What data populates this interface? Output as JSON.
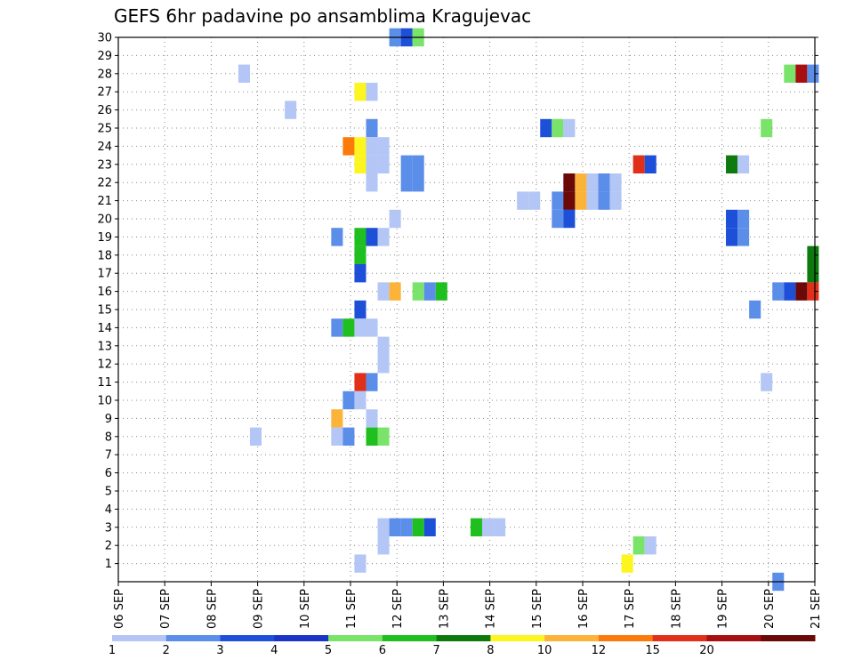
{
  "chart_data": {
    "type": "heatmap",
    "title": "GEFS 6hr padavine po ansamblima Kragujevac",
    "x_tick_labels": [
      "06 SEP",
      "07 SEP",
      "08 SEP",
      "09 SEP",
      "10 SEP",
      "11 SEP",
      "12 SEP",
      "13 SEP",
      "14 SEP",
      "15 SEP",
      "16 SEP",
      "17 SEP",
      "18 SEP",
      "19 SEP",
      "20 SEP",
      "21 SEP"
    ],
    "x_range_days": [
      0,
      15
    ],
    "step_days": 0.25,
    "y_tick_labels": [
      1,
      2,
      3,
      4,
      5,
      6,
      7,
      8,
      9,
      10,
      11,
      12,
      13,
      14,
      15,
      16,
      17,
      18,
      19,
      20,
      21,
      22,
      23,
      24,
      25,
      26,
      27,
      28,
      29,
      30
    ],
    "y_range": [
      0,
      30
    ],
    "grid": true,
    "colorbar": {
      "labels": [
        "1",
        "2",
        "3",
        "4",
        "5",
        "6",
        "7",
        "8",
        "10",
        "12",
        "15",
        "20"
      ],
      "colors": [
        "#b3c6f5",
        "#5b8ee9",
        "#1d4fd8",
        "#1a35c6",
        "#7ae36a",
        "#1fbf1f",
        "#0e7a0e",
        "#fdf520",
        "#fbb33a",
        "#fb7a0a",
        "#e0301a",
        "#a80f10",
        "#6b0808"
      ]
    },
    "cells": [
      [
        30,
        5.96,
        "#5b8ee9"
      ],
      [
        30,
        6.21,
        "#1d4fd8"
      ],
      [
        30,
        6.46,
        "#7ae36a"
      ],
      [
        28,
        2.71,
        "#b3c6f5"
      ],
      [
        28,
        14.46,
        "#7ae36a"
      ],
      [
        28,
        14.71,
        "#a80f10"
      ],
      [
        28,
        14.96,
        "#5b8ee9"
      ],
      [
        27,
        5.21,
        "#fdf520"
      ],
      [
        27,
        5.46,
        "#b3c6f5"
      ],
      [
        26,
        3.71,
        "#b3c6f5"
      ],
      [
        25,
        5.46,
        "#5b8ee9"
      ],
      [
        25,
        9.21,
        "#1d4fd8"
      ],
      [
        25,
        9.46,
        "#7ae36a"
      ],
      [
        25,
        9.71,
        "#b3c6f5"
      ],
      [
        25,
        13.96,
        "#7ae36a"
      ],
      [
        24,
        4.96,
        "#fb7a0a"
      ],
      [
        24,
        5.21,
        "#fdf520"
      ],
      [
        24,
        5.46,
        "#b3c6f5"
      ],
      [
        24,
        5.71,
        "#b3c6f5"
      ],
      [
        23,
        5.21,
        "#fdf520"
      ],
      [
        23,
        5.46,
        "#b3c6f5"
      ],
      [
        23,
        5.71,
        "#b3c6f5"
      ],
      [
        23,
        6.21,
        "#5b8ee9"
      ],
      [
        23,
        6.46,
        "#5b8ee9"
      ],
      [
        23,
        11.21,
        "#e0301a"
      ],
      [
        23,
        11.46,
        "#1d4fd8"
      ],
      [
        23,
        13.21,
        "#0e7a0e"
      ],
      [
        23,
        13.46,
        "#b3c6f5"
      ],
      [
        22,
        5.46,
        "#b3c6f5"
      ],
      [
        22,
        6.21,
        "#5b8ee9"
      ],
      [
        22,
        6.46,
        "#5b8ee9"
      ],
      [
        22,
        9.71,
        "#6b0808"
      ],
      [
        22,
        9.96,
        "#fbb33a"
      ],
      [
        22,
        10.21,
        "#b3c6f5"
      ],
      [
        22,
        10.46,
        "#5b8ee9"
      ],
      [
        22,
        10.71,
        "#b3c6f5"
      ],
      [
        21,
        8.71,
        "#b3c6f5"
      ],
      [
        21,
        8.96,
        "#b3c6f5"
      ],
      [
        21,
        9.46,
        "#5b8ee9"
      ],
      [
        21,
        9.71,
        "#1d4fd8"
      ],
      [
        21,
        9.71,
        "#6b0808"
      ],
      [
        21,
        9.96,
        "#fbb33a"
      ],
      [
        21,
        10.21,
        "#b3c6f5"
      ],
      [
        21,
        10.46,
        "#5b8ee9"
      ],
      [
        21,
        10.71,
        "#b3c6f5"
      ],
      [
        20,
        5.96,
        "#b3c6f5"
      ],
      [
        20,
        9.46,
        "#5b8ee9"
      ],
      [
        20,
        9.71,
        "#1d4fd8"
      ],
      [
        20,
        13.21,
        "#1d4fd8"
      ],
      [
        20,
        13.46,
        "#5b8ee9"
      ],
      [
        19,
        4.71,
        "#5b8ee9"
      ],
      [
        19,
        5.21,
        "#1fbf1f"
      ],
      [
        19,
        5.46,
        "#1d4fd8"
      ],
      [
        19,
        5.71,
        "#b3c6f5"
      ],
      [
        19,
        13.21,
        "#1d4fd8"
      ],
      [
        19,
        13.46,
        "#5b8ee9"
      ],
      [
        18,
        5.21,
        "#1fbf1f"
      ],
      [
        18,
        14.96,
        "#0e7a0e"
      ],
      [
        17,
        5.21,
        "#1d4fd8"
      ],
      [
        17,
        14.96,
        "#0e7a0e"
      ],
      [
        16,
        5.71,
        "#b3c6f5"
      ],
      [
        16,
        5.96,
        "#fbb33a"
      ],
      [
        16,
        6.46,
        "#7ae36a"
      ],
      [
        16,
        6.71,
        "#5b8ee9"
      ],
      [
        16,
        6.96,
        "#1fbf1f"
      ],
      [
        16,
        14.21,
        "#5b8ee9"
      ],
      [
        16,
        14.46,
        "#1d4fd8"
      ],
      [
        16,
        14.71,
        "#6b0808"
      ],
      [
        16,
        14.96,
        "#e0301a"
      ],
      [
        15,
        5.21,
        "#1d4fd8"
      ],
      [
        15,
        13.71,
        "#5b8ee9"
      ],
      [
        14,
        4.71,
        "#5b8ee9"
      ],
      [
        14,
        4.96,
        "#1fbf1f"
      ],
      [
        14,
        5.21,
        "#b3c6f5"
      ],
      [
        14,
        5.46,
        "#b3c6f5"
      ],
      [
        13,
        5.71,
        "#b3c6f5"
      ],
      [
        12,
        5.71,
        "#b3c6f5"
      ],
      [
        11,
        5.21,
        "#e0301a"
      ],
      [
        11,
        5.46,
        "#5b8ee9"
      ],
      [
        11,
        13.96,
        "#b3c6f5"
      ],
      [
        10,
        4.96,
        "#5b8ee9"
      ],
      [
        10,
        5.21,
        "#b3c6f5"
      ],
      [
        9,
        4.71,
        "#fbb33a"
      ],
      [
        9,
        5.46,
        "#b3c6f5"
      ],
      [
        8,
        2.96,
        "#b3c6f5"
      ],
      [
        8,
        4.71,
        "#b3c6f5"
      ],
      [
        8,
        4.96,
        "#5b8ee9"
      ],
      [
        8,
        5.46,
        "#1fbf1f"
      ],
      [
        8,
        5.71,
        "#7ae36a"
      ],
      [
        3,
        5.71,
        "#b3c6f5"
      ],
      [
        3,
        5.96,
        "#5b8ee9"
      ],
      [
        3,
        6.21,
        "#5b8ee9"
      ],
      [
        3,
        6.46,
        "#1fbf1f"
      ],
      [
        3,
        6.71,
        "#1d4fd8"
      ],
      [
        3,
        7.71,
        "#1fbf1f"
      ],
      [
        3,
        7.96,
        "#b3c6f5"
      ],
      [
        3,
        8.21,
        "#b3c6f5"
      ],
      [
        2,
        5.71,
        "#b3c6f5"
      ],
      [
        2,
        11.21,
        "#7ae36a"
      ],
      [
        2,
        11.46,
        "#b3c6f5"
      ],
      [
        1,
        5.21,
        "#b3c6f5"
      ],
      [
        1,
        10.96,
        "#fdf520"
      ],
      [
        0,
        14.21,
        "#5b8ee9"
      ]
    ]
  }
}
